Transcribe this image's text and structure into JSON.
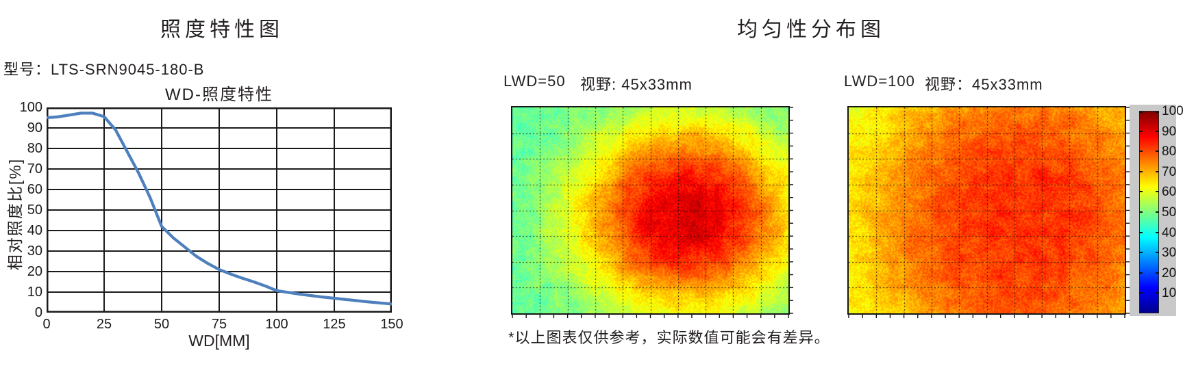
{
  "page": {
    "background": "#ffffff"
  },
  "left_section": {
    "title": "照度特性图",
    "model_label": "型号：LTS-SRN9045-180-B",
    "chart_title": "WD-照度特性",
    "xlabel": "WD[MM]",
    "ylabel": "相对照度比[%]"
  },
  "right_section": {
    "title": "均匀性分布图",
    "heatmap1": {
      "lwd_label": "LWD=50",
      "fov_label": "视野: 45x33mm"
    },
    "heatmap2": {
      "lwd_label": "LWD=100",
      "fov_label": "视野：45x33mm"
    },
    "colorbar": {
      "tick_labels": [
        100,
        90,
        80,
        70,
        60,
        50,
        40,
        30,
        20,
        10
      ],
      "min": 0,
      "max": 100,
      "colormap": "jet"
    },
    "footnote": "*以上图表仅供参考，实际数值可能会有差异。"
  },
  "chart_data": [
    {
      "type": "line",
      "title": "WD-照度特性",
      "xlabel": "WD[MM]",
      "ylabel": "相对照度比[%]",
      "xlim": [
        0,
        150
      ],
      "ylim": [
        0,
        100
      ],
      "x_ticks": [
        0,
        25,
        50,
        75,
        100,
        125,
        150
      ],
      "y_ticks": [
        0,
        10,
        20,
        30,
        40,
        50,
        60,
        70,
        80,
        90,
        100
      ],
      "grid": true,
      "legend": "none",
      "line_color": "#4e80bd",
      "series": [
        {
          "name": "相对照度比[%]",
          "x": [
            0,
            5,
            10,
            15,
            20,
            25,
            30,
            35,
            40,
            45,
            50,
            55,
            60,
            65,
            70,
            75,
            80,
            85,
            90,
            95,
            100,
            110,
            120,
            125,
            130,
            140,
            150
          ],
          "y": [
            95,
            95.4,
            96.3,
            97.2,
            97.2,
            95.5,
            89,
            78.5,
            68,
            56,
            42,
            36.5,
            32,
            27.5,
            24,
            21,
            18.8,
            16.8,
            15,
            13,
            10.7,
            9,
            7.6,
            7,
            6.4,
            5.2,
            4.2
          ]
        }
      ]
    },
    {
      "type": "heatmap",
      "label": "LWD=50",
      "fov": "视野: 45x33mm",
      "value_range": [
        0,
        100
      ],
      "colormap": "jet",
      "grid": {
        "cols": 10,
        "rows": 8,
        "style": "dashed"
      },
      "pattern": {
        "base": 46,
        "peak": 45,
        "cx": 0.63,
        "cy": 0.53,
        "sx": 0.4,
        "sy": 0.46,
        "pow": 1.15,
        "noise_fine": 3.5,
        "noise_coarse": 3,
        "seed": 7
      },
      "summary": "green edges (~48%) rising through yellow to a red core (~90%) centered right of middle"
    },
    {
      "type": "heatmap",
      "label": "LWD=100",
      "fov": "视野：45x33mm",
      "value_range": [
        0,
        100
      ],
      "colormap": "jet",
      "grid": {
        "cols": 10,
        "rows": 8,
        "style": "dashed"
      },
      "pattern": {
        "base": 56,
        "peak": 27,
        "cx": 0.62,
        "cy": 0.55,
        "sx": 0.6,
        "sy": 0.85,
        "pow": 1.3,
        "noise_fine": 3.5,
        "noise_coarse": 3,
        "seed": 13
      },
      "summary": "yellow-green left edge (~60%) to broad orange-red field (~80-85%)"
    }
  ],
  "colors": {
    "curve_blue": "#4e80bd",
    "axis_black": "#1a1a1a",
    "text": "#231f20",
    "colorbar_panel": "#c9c9c9"
  }
}
